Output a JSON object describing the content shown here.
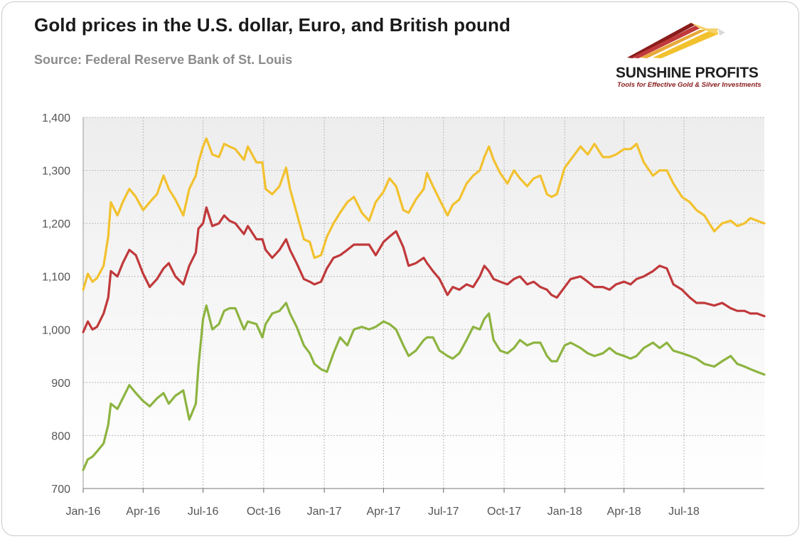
{
  "header": {
    "title": "Gold prices in the U.S. dollar, Euro, and British pound",
    "subtitle": "Source: Federal Reserve Bank of St. Louis"
  },
  "logo": {
    "name": "SUNSHINE PROFITS",
    "tagline": "Tools for Effective Gold & Silver Investments"
  },
  "colors": {
    "usd": "#f2c12e",
    "eur": "#c0393b",
    "gbp": "#8db441",
    "grid": "#b8b8b8",
    "plot_bg_top": "#ededed",
    "plot_bg_bottom": "#ffffff"
  },
  "chart_data": {
    "type": "line",
    "title": "Gold prices in the U.S. dollar, Euro, and British pound",
    "xlabel": "",
    "ylabel": "",
    "ylim": [
      700,
      1400
    ],
    "yticks": [
      700,
      800,
      900,
      1000,
      1100,
      1200,
      1300,
      1400
    ],
    "ytick_labels": [
      "700",
      "800",
      "900",
      "1,000",
      "1,100",
      "1,200",
      "1,300",
      "1,400"
    ],
    "xlim": [
      "2016-01-01",
      "2018-10-31"
    ],
    "xticks": [
      "2016-01-01",
      "2016-04-01",
      "2016-07-01",
      "2016-10-01",
      "2017-01-01",
      "2017-04-01",
      "2017-07-01",
      "2017-10-01",
      "2018-01-01",
      "2018-04-01",
      "2018-07-01"
    ],
    "xtick_labels": [
      "Jan-16",
      "Apr-16",
      "Jul-16",
      "Oct-16",
      "Jan-17",
      "Apr-17",
      "Jul-17",
      "Oct-17",
      "Jan-18",
      "Apr-18",
      "Jul-18"
    ],
    "grid": true,
    "legend": "none",
    "series": [
      {
        "color_key": "usd",
        "x": [
          "2016-01-01",
          "2016-01-08",
          "2016-01-15",
          "2016-01-22",
          "2016-02-01",
          "2016-02-08",
          "2016-02-12",
          "2016-02-22",
          "2016-03-01",
          "2016-03-11",
          "2016-03-21",
          "2016-04-01",
          "2016-04-11",
          "2016-04-22",
          "2016-05-02",
          "2016-05-10",
          "2016-05-20",
          "2016-06-01",
          "2016-06-10",
          "2016-06-20",
          "2016-06-24",
          "2016-07-01",
          "2016-07-06",
          "2016-07-15",
          "2016-07-25",
          "2016-08-02",
          "2016-08-10",
          "2016-08-19",
          "2016-09-01",
          "2016-09-07",
          "2016-09-20",
          "2016-09-29",
          "2016-10-04",
          "2016-10-14",
          "2016-10-25",
          "2016-11-04",
          "2016-11-10",
          "2016-11-20",
          "2016-12-01",
          "2016-12-10",
          "2016-12-17",
          "2016-12-27",
          "2017-01-05",
          "2017-01-15",
          "2017-01-25",
          "2017-02-05",
          "2017-02-15",
          "2017-02-27",
          "2017-03-10",
          "2017-03-20",
          "2017-04-01",
          "2017-04-10",
          "2017-04-20",
          "2017-05-01",
          "2017-05-09",
          "2017-05-20",
          "2017-06-01",
          "2017-06-06",
          "2017-06-15",
          "2017-06-25",
          "2017-07-07",
          "2017-07-15",
          "2017-07-25",
          "2017-08-05",
          "2017-08-15",
          "2017-08-25",
          "2017-09-01",
          "2017-09-08",
          "2017-09-15",
          "2017-09-25",
          "2017-10-06",
          "2017-10-16",
          "2017-10-25",
          "2017-11-05",
          "2017-11-15",
          "2017-11-25",
          "2017-12-05",
          "2017-12-12",
          "2017-12-20",
          "2018-01-01",
          "2018-01-10",
          "2018-01-25",
          "2018-02-05",
          "2018-02-15",
          "2018-02-28",
          "2018-03-10",
          "2018-03-20",
          "2018-04-01",
          "2018-04-11",
          "2018-04-20",
          "2018-05-01",
          "2018-05-15",
          "2018-05-25",
          "2018-06-05",
          "2018-06-15",
          "2018-06-28",
          "2018-07-10",
          "2018-07-20",
          "2018-08-01",
          "2018-08-16",
          "2018-08-28",
          "2018-09-10",
          "2018-09-20",
          "2018-10-01",
          "2018-10-10",
          "2018-10-20",
          "2018-10-31"
        ],
        "values": [
          1075,
          1105,
          1090,
          1097,
          1120,
          1175,
          1240,
          1215,
          1240,
          1265,
          1250,
          1225,
          1240,
          1255,
          1290,
          1265,
          1245,
          1215,
          1265,
          1290,
          1315,
          1345,
          1360,
          1330,
          1325,
          1350,
          1345,
          1340,
          1320,
          1345,
          1315,
          1315,
          1265,
          1255,
          1270,
          1305,
          1265,
          1220,
          1170,
          1165,
          1135,
          1140,
          1175,
          1200,
          1220,
          1240,
          1250,
          1220,
          1205,
          1240,
          1260,
          1285,
          1270,
          1225,
          1220,
          1245,
          1265,
          1295,
          1270,
          1245,
          1215,
          1235,
          1245,
          1275,
          1290,
          1300,
          1325,
          1345,
          1320,
          1295,
          1275,
          1300,
          1285,
          1270,
          1285,
          1290,
          1255,
          1250,
          1255,
          1305,
          1320,
          1345,
          1330,
          1350,
          1325,
          1325,
          1330,
          1340,
          1340,
          1350,
          1315,
          1290,
          1300,
          1300,
          1275,
          1250,
          1240,
          1225,
          1215,
          1185,
          1200,
          1205,
          1195,
          1200,
          1210,
          1205,
          1200
        ]
      },
      {
        "color_key": "eur",
        "x": [
          "2016-01-01",
          "2016-01-08",
          "2016-01-15",
          "2016-01-22",
          "2016-02-01",
          "2016-02-08",
          "2016-02-12",
          "2016-02-22",
          "2016-03-01",
          "2016-03-11",
          "2016-03-21",
          "2016-04-01",
          "2016-04-11",
          "2016-04-22",
          "2016-05-02",
          "2016-05-10",
          "2016-05-20",
          "2016-06-01",
          "2016-06-10",
          "2016-06-20",
          "2016-06-24",
          "2016-07-01",
          "2016-07-06",
          "2016-07-15",
          "2016-07-25",
          "2016-08-02",
          "2016-08-10",
          "2016-08-19",
          "2016-09-01",
          "2016-09-07",
          "2016-09-20",
          "2016-09-29",
          "2016-10-04",
          "2016-10-14",
          "2016-10-25",
          "2016-11-04",
          "2016-11-10",
          "2016-11-20",
          "2016-12-01",
          "2016-12-10",
          "2016-12-17",
          "2016-12-27",
          "2017-01-05",
          "2017-01-15",
          "2017-01-25",
          "2017-02-05",
          "2017-02-15",
          "2017-02-27",
          "2017-03-10",
          "2017-03-20",
          "2017-04-01",
          "2017-04-10",
          "2017-04-20",
          "2017-05-01",
          "2017-05-09",
          "2017-05-20",
          "2017-06-01",
          "2017-06-06",
          "2017-06-15",
          "2017-06-25",
          "2017-07-07",
          "2017-07-15",
          "2017-07-25",
          "2017-08-05",
          "2017-08-15",
          "2017-08-25",
          "2017-09-01",
          "2017-09-08",
          "2017-09-15",
          "2017-09-25",
          "2017-10-06",
          "2017-10-16",
          "2017-10-25",
          "2017-11-05",
          "2017-11-15",
          "2017-11-25",
          "2017-12-05",
          "2017-12-12",
          "2017-12-20",
          "2018-01-01",
          "2018-01-10",
          "2018-01-25",
          "2018-02-05",
          "2018-02-15",
          "2018-02-28",
          "2018-03-10",
          "2018-03-20",
          "2018-04-01",
          "2018-04-11",
          "2018-04-20",
          "2018-05-01",
          "2018-05-15",
          "2018-05-25",
          "2018-06-05",
          "2018-06-15",
          "2018-06-28",
          "2018-07-10",
          "2018-07-20",
          "2018-08-01",
          "2018-08-16",
          "2018-08-28",
          "2018-09-10",
          "2018-09-20",
          "2018-10-01",
          "2018-10-10",
          "2018-10-20",
          "2018-10-31"
        ],
        "values": [
          995,
          1015,
          1000,
          1005,
          1030,
          1060,
          1110,
          1100,
          1125,
          1150,
          1140,
          1105,
          1080,
          1095,
          1115,
          1125,
          1100,
          1085,
          1120,
          1145,
          1190,
          1200,
          1230,
          1195,
          1200,
          1215,
          1205,
          1200,
          1180,
          1195,
          1170,
          1170,
          1150,
          1135,
          1150,
          1170,
          1150,
          1125,
          1095,
          1090,
          1085,
          1090,
          1115,
          1135,
          1140,
          1150,
          1160,
          1160,
          1160,
          1140,
          1165,
          1175,
          1185,
          1155,
          1120,
          1125,
          1135,
          1125,
          1110,
          1095,
          1065,
          1080,
          1075,
          1085,
          1080,
          1100,
          1120,
          1110,
          1095,
          1090,
          1085,
          1095,
          1100,
          1085,
          1090,
          1080,
          1075,
          1065,
          1060,
          1080,
          1095,
          1100,
          1090,
          1080,
          1080,
          1075,
          1085,
          1090,
          1085,
          1095,
          1100,
          1110,
          1120,
          1115,
          1085,
          1075,
          1060,
          1050,
          1050,
          1045,
          1050,
          1040,
          1035,
          1035,
          1030,
          1030,
          1025
        ]
      },
      {
        "color_key": "gbp",
        "x": [
          "2016-01-01",
          "2016-01-08",
          "2016-01-15",
          "2016-01-22",
          "2016-02-01",
          "2016-02-08",
          "2016-02-12",
          "2016-02-22",
          "2016-03-01",
          "2016-03-11",
          "2016-03-21",
          "2016-04-01",
          "2016-04-11",
          "2016-04-22",
          "2016-05-02",
          "2016-05-10",
          "2016-05-20",
          "2016-06-01",
          "2016-06-10",
          "2016-06-20",
          "2016-06-24",
          "2016-07-01",
          "2016-07-06",
          "2016-07-15",
          "2016-07-25",
          "2016-08-02",
          "2016-08-10",
          "2016-08-19",
          "2016-09-01",
          "2016-09-07",
          "2016-09-20",
          "2016-09-29",
          "2016-10-04",
          "2016-10-14",
          "2016-10-25",
          "2016-11-04",
          "2016-11-10",
          "2016-11-20",
          "2016-12-01",
          "2016-12-10",
          "2016-12-17",
          "2016-12-27",
          "2017-01-05",
          "2017-01-15",
          "2017-01-25",
          "2017-02-05",
          "2017-02-15",
          "2017-02-27",
          "2017-03-10",
          "2017-03-20",
          "2017-04-01",
          "2017-04-10",
          "2017-04-20",
          "2017-05-01",
          "2017-05-09",
          "2017-05-20",
          "2017-06-01",
          "2017-06-06",
          "2017-06-15",
          "2017-06-25",
          "2017-07-07",
          "2017-07-15",
          "2017-07-25",
          "2017-08-05",
          "2017-08-15",
          "2017-08-25",
          "2017-09-01",
          "2017-09-08",
          "2017-09-15",
          "2017-09-25",
          "2017-10-06",
          "2017-10-16",
          "2017-10-25",
          "2017-11-05",
          "2017-11-15",
          "2017-11-25",
          "2017-12-05",
          "2017-12-12",
          "2017-12-20",
          "2018-01-01",
          "2018-01-10",
          "2018-01-25",
          "2018-02-05",
          "2018-02-15",
          "2018-02-28",
          "2018-03-10",
          "2018-03-20",
          "2018-04-01",
          "2018-04-11",
          "2018-04-20",
          "2018-05-01",
          "2018-05-15",
          "2018-05-25",
          "2018-06-05",
          "2018-06-15",
          "2018-06-28",
          "2018-07-10",
          "2018-07-20",
          "2018-08-01",
          "2018-08-16",
          "2018-08-28",
          "2018-09-10",
          "2018-09-20",
          "2018-10-01",
          "2018-10-10",
          "2018-10-20",
          "2018-10-31"
        ],
        "values": [
          735,
          755,
          760,
          770,
          785,
          820,
          860,
          850,
          870,
          895,
          880,
          865,
          855,
          870,
          880,
          860,
          875,
          885,
          830,
          860,
          930,
          1020,
          1045,
          1000,
          1010,
          1035,
          1040,
          1040,
          1000,
          1015,
          1010,
          985,
          1010,
          1030,
          1035,
          1050,
          1030,
          1005,
          970,
          955,
          935,
          925,
          920,
          955,
          985,
          970,
          1000,
          1005,
          1000,
          1005,
          1015,
          1010,
          1000,
          970,
          950,
          960,
          980,
          985,
          985,
          960,
          950,
          945,
          955,
          980,
          1005,
          1000,
          1020,
          1030,
          980,
          960,
          955,
          965,
          980,
          970,
          975,
          975,
          950,
          940,
          940,
          970,
          975,
          965,
          955,
          950,
          955,
          965,
          955,
          950,
          945,
          950,
          965,
          975,
          965,
          975,
          960,
          955,
          950,
          945,
          935,
          930,
          940,
          950,
          935,
          930,
          925,
          920,
          915
        ]
      }
    ]
  }
}
